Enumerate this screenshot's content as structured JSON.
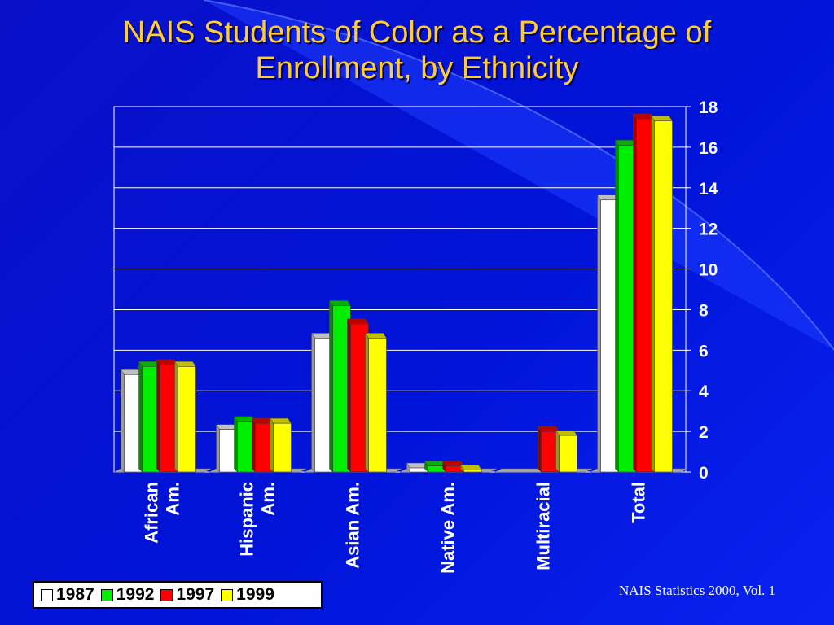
{
  "slide": {
    "title_line1": "NAIS Students of Color as a Percentage of",
    "title_line2": "Enrollment, by Ethnicity",
    "source": "NAIS Statistics 2000, Vol. 1"
  },
  "colors": {
    "background": "#0014d8",
    "title": "#ffcc33",
    "series_1987": "#ffffff",
    "series_1992": "#00ee00",
    "series_1997": "#ff0000",
    "series_1999": "#ffff00"
  },
  "chart_data": {
    "type": "bar",
    "title": "NAIS Students of Color as a Percentage of Enrollment, by Ethnicity",
    "categories": [
      "African Am.",
      "Hispanic Am.",
      "Asian Am.",
      "Native Am.",
      "Multiracial",
      "Total"
    ],
    "category_lines": [
      [
        "African",
        "Am."
      ],
      [
        "Hispanic",
        "Am."
      ],
      [
        "Asian Am."
      ],
      [
        "Native Am."
      ],
      [
        "Multiracial"
      ],
      [
        "Total"
      ]
    ],
    "series": [
      {
        "name": "1987",
        "color": "#ffffff",
        "values": [
          4.8,
          2.1,
          6.6,
          0.2,
          0,
          13.4
        ]
      },
      {
        "name": "1992",
        "color": "#00ee00",
        "values": [
          5.2,
          2.5,
          8.2,
          0.3,
          0,
          16.1
        ]
      },
      {
        "name": "1997",
        "color": "#ff0000",
        "values": [
          5.3,
          2.4,
          7.3,
          0.3,
          2.0,
          17.4
        ]
      },
      {
        "name": "1999",
        "color": "#ffff00",
        "values": [
          5.2,
          2.4,
          6.6,
          0.1,
          1.8,
          17.3
        ]
      }
    ],
    "ylim": [
      0,
      18
    ],
    "yticks": [
      0,
      2,
      4,
      6,
      8,
      10,
      12,
      14,
      16,
      18
    ],
    "y_axis_side": "right",
    "grid": true,
    "legend_position": "bottom-left"
  }
}
